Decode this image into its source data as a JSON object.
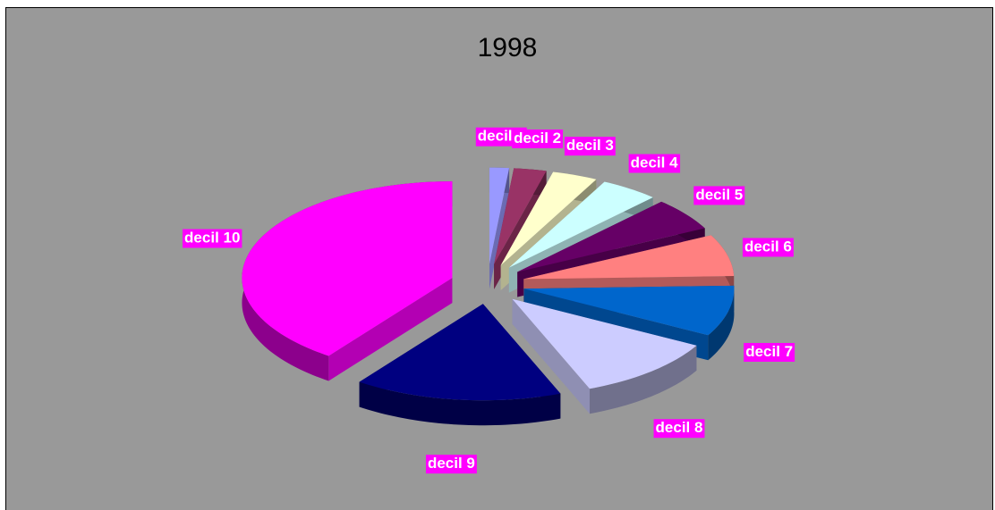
{
  "chart_data": {
    "type": "pie",
    "title": "1998",
    "categories": [
      "decil 1",
      "decil 2",
      "decil 3",
      "decil 4",
      "decil 5",
      "decil 6",
      "decil 7",
      "decil 8",
      "decil 9",
      "decil 10"
    ],
    "values": [
      1.5,
      2.5,
      3.5,
      4.5,
      5.5,
      7,
      8.5,
      11,
      16,
      40
    ],
    "colors": [
      "#9999ff",
      "#993366",
      "#ffffcc",
      "#ccffff",
      "#660066",
      "#ff8080",
      "#0066cc",
      "#ccccff",
      "#000080",
      "#ff00ff"
    ]
  }
}
